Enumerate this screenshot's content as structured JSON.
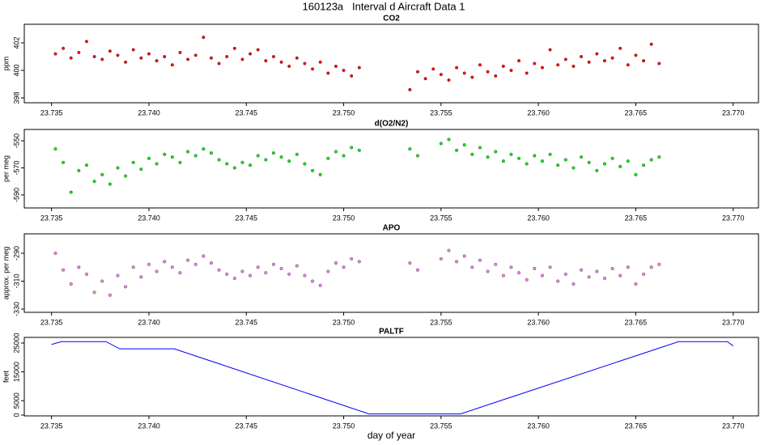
{
  "title": "160123a   Interval d Aircraft Data 1",
  "chart_data": [
    {
      "type": "scatter",
      "title": "CO2",
      "ylabel": "ppm",
      "xlim": [
        23.7336,
        23.7713
      ],
      "ylim": [
        397.65,
        403.35
      ],
      "yticks": [
        398,
        400,
        402
      ],
      "xticks": [
        23.735,
        {
          "value": 23.74,
          "label": "23.740"
        },
        23.745,
        {
          "value": 23.75,
          "label": "23.750"
        },
        23.755,
        {
          "value": 23.76,
          "label": "23.760"
        },
        23.765,
        {
          "value": 23.77,
          "label": "23.770"
        }
      ],
      "color": "#ff0000",
      "x": [
        23.7352,
        23.7356,
        23.736,
        23.7364,
        23.7368,
        23.7372,
        23.7376,
        23.738,
        23.7384,
        23.7388,
        23.7392,
        23.7396,
        23.74,
        23.7404,
        23.7408,
        23.7412,
        23.7416,
        23.742,
        23.7424,
        23.7428,
        23.7432,
        23.7436,
        23.744,
        23.7444,
        23.7448,
        23.7452,
        23.7456,
        23.746,
        23.7464,
        23.7468,
        23.7472,
        23.7476,
        23.748,
        23.7484,
        23.7488,
        23.7492,
        23.7496,
        23.75,
        23.7504,
        23.7508,
        23.7534,
        23.7538,
        23.7542,
        23.7546,
        23.755,
        23.7554,
        23.7558,
        23.7562,
        23.7566,
        23.757,
        23.7574,
        23.7578,
        23.7582,
        23.7586,
        23.759,
        23.7594,
        23.7598,
        23.7602,
        23.7606,
        23.761,
        23.7614,
        23.7618,
        23.7622,
        23.7626,
        23.763,
        23.7634,
        23.7638,
        23.7642,
        23.7646,
        23.765,
        23.7654,
        23.7658,
        23.7662
      ],
      "values": [
        401.2,
        401.6,
        400.9,
        401.3,
        402.1,
        401.0,
        400.8,
        401.4,
        401.1,
        400.6,
        401.5,
        400.9,
        401.2,
        400.7,
        401.0,
        400.4,
        401.3,
        400.8,
        401.1,
        402.4,
        400.9,
        400.5,
        401.0,
        401.6,
        400.8,
        401.2,
        401.5,
        400.7,
        401.0,
        400.6,
        400.3,
        400.9,
        400.5,
        400.1,
        400.6,
        399.8,
        400.3,
        400.0,
        399.6,
        400.2,
        398.6,
        399.9,
        399.4,
        400.1,
        399.7,
        399.3,
        400.2,
        399.8,
        399.5,
        400.4,
        399.9,
        399.6,
        400.3,
        400.0,
        400.7,
        399.8,
        400.5,
        400.2,
        401.5,
        400.4,
        400.8,
        400.3,
        401.0,
        400.6,
        401.2,
        400.7,
        400.9,
        401.6,
        400.4,
        401.1,
        400.7,
        401.9,
        400.5
      ]
    },
    {
      "type": "scatter",
      "title": "d(O2/N2)",
      "ylabel": "per meg",
      "xlim": [
        23.7336,
        23.7713
      ],
      "ylim": [
        -599.6,
        -541.6
      ],
      "yticks": [
        -550,
        -570,
        -590
      ],
      "xticks": [
        23.735,
        {
          "value": 23.74,
          "label": "23.740"
        },
        23.745,
        {
          "value": 23.75,
          "label": "23.750"
        },
        23.755,
        {
          "value": 23.76,
          "label": "23.760"
        },
        23.765,
        {
          "value": 23.77,
          "label": "23.770"
        }
      ],
      "color": "#00ee00",
      "x": [
        23.7352,
        23.7356,
        23.736,
        23.7364,
        23.7368,
        23.7372,
        23.7376,
        23.738,
        23.7384,
        23.7388,
        23.7392,
        23.7396,
        23.74,
        23.7404,
        23.7408,
        23.7412,
        23.7416,
        23.742,
        23.7424,
        23.7428,
        23.7432,
        23.7436,
        23.744,
        23.7444,
        23.7448,
        23.7452,
        23.7456,
        23.746,
        23.7464,
        23.7468,
        23.7472,
        23.7476,
        23.748,
        23.7484,
        23.7488,
        23.7492,
        23.7496,
        23.75,
        23.7504,
        23.7508,
        23.7534,
        23.7538,
        23.7542,
        23.7546,
        23.755,
        23.7554,
        23.7558,
        23.7562,
        23.7566,
        23.757,
        23.7574,
        23.7578,
        23.7582,
        23.7586,
        23.759,
        23.7594,
        23.7598,
        23.7602,
        23.7606,
        23.761,
        23.7614,
        23.7618,
        23.7622,
        23.7626,
        23.763,
        23.7634,
        23.7638,
        23.7642,
        23.7646,
        23.765,
        23.7654,
        23.7658,
        23.7662
      ],
      "values": [
        -556,
        -566,
        -588,
        -572,
        -568,
        -580,
        -575,
        -582,
        -570,
        -576,
        -566,
        -571,
        -563,
        -567,
        -560,
        -562,
        -566,
        -558,
        -561,
        -556,
        -559,
        -564,
        -567,
        -570,
        -566,
        -568,
        -561,
        -564,
        -559,
        -562,
        -565,
        -560,
        -567,
        -572,
        -575,
        -563,
        -558,
        -561,
        -555,
        -557,
        -556,
        -561,
        null,
        null,
        -552,
        -549,
        -557,
        -553,
        -560,
        -555,
        -562,
        -558,
        -565,
        -560,
        -563,
        -567,
        -561,
        -565,
        -560,
        -568,
        -564,
        -570,
        -562,
        -566,
        -572,
        -567,
        -563,
        -569,
        -565,
        -575,
        -568,
        -564,
        -562
      ]
    },
    {
      "type": "scatter",
      "title": "APO",
      "ylabel": "approx. per meg",
      "xlim": [
        23.7336,
        23.7713
      ],
      "ylim": [
        -332.3,
        -276.1
      ],
      "yticks": [
        -290,
        -310,
        -330
      ],
      "xticks": [
        23.735,
        {
          "value": 23.74,
          "label": "23.740"
        },
        23.745,
        {
          "value": 23.75,
          "label": "23.750"
        },
        23.755,
        {
          "value": 23.76,
          "label": "23.760"
        },
        23.765,
        {
          "value": 23.77,
          "label": "23.770"
        }
      ],
      "color": "#ee82ee",
      "x": [
        23.7352,
        23.7356,
        23.736,
        23.7364,
        23.7368,
        23.7372,
        23.7376,
        23.738,
        23.7384,
        23.7388,
        23.7392,
        23.7396,
        23.74,
        23.7404,
        23.7408,
        23.7412,
        23.7416,
        23.742,
        23.7424,
        23.7428,
        23.7432,
        23.7436,
        23.744,
        23.7444,
        23.7448,
        23.7452,
        23.7456,
        23.746,
        23.7464,
        23.7468,
        23.7472,
        23.7476,
        23.748,
        23.7484,
        23.7488,
        23.7492,
        23.7496,
        23.75,
        23.7504,
        23.7508,
        23.7534,
        23.7538,
        23.7542,
        23.7546,
        23.755,
        23.7554,
        23.7558,
        23.7562,
        23.7566,
        23.757,
        23.7574,
        23.7578,
        23.7582,
        23.7586,
        23.759,
        23.7594,
        23.7598,
        23.7602,
        23.7606,
        23.761,
        23.7614,
        23.7618,
        23.7622,
        23.7626,
        23.763,
        23.7634,
        23.7638,
        23.7642,
        23.7646,
        23.765,
        23.7654,
        23.7658,
        23.7662
      ],
      "values": [
        -290,
        -302,
        -312,
        -300,
        -305,
        -318,
        -310,
        -320,
        -306,
        -314,
        -300,
        -307,
        -298,
        -303,
        -296,
        -300,
        -304,
        -295,
        -298,
        -292,
        -297,
        -302,
        -305,
        -308,
        -303,
        -306,
        -300,
        -304,
        -298,
        -301,
        -305,
        -299,
        -306,
        -310,
        -313,
        -303,
        -297,
        -300,
        -294,
        -296,
        -297,
        -302,
        null,
        null,
        -294,
        -288,
        -296,
        -292,
        -300,
        -295,
        -303,
        -298,
        -306,
        -300,
        -304,
        -309,
        -301,
        -306,
        -300,
        -310,
        -305,
        -312,
        -302,
        -307,
        -303,
        -308,
        -301,
        -306,
        -300,
        -312,
        -305,
        -300,
        -298
      ]
    },
    {
      "type": "line",
      "title": "PALTF",
      "ylabel": "feet",
      "xlabel": "day of year",
      "xlim": [
        23.7336,
        23.7713
      ],
      "ylim": [
        -280,
        26970
      ],
      "yticks": [
        0,
        5000,
        15000,
        25000
      ],
      "xticks": [
        23.735,
        {
          "value": 23.74,
          "label": "23.740"
        },
        23.745,
        {
          "value": 23.75,
          "label": "23.750"
        },
        23.755,
        {
          "value": 23.76,
          "label": "23.760"
        },
        23.765,
        {
          "value": 23.77,
          "label": "23.770"
        }
      ],
      "color": "#0000ff",
      "x": [
        23.735,
        23.7355,
        23.7378,
        23.7385,
        23.7413,
        23.7513,
        23.756,
        23.7672,
        23.7697,
        23.77
      ],
      "values": [
        24500,
        25500,
        25500,
        23000,
        23000,
        400,
        400,
        25500,
        25500,
        24000
      ]
    }
  ]
}
